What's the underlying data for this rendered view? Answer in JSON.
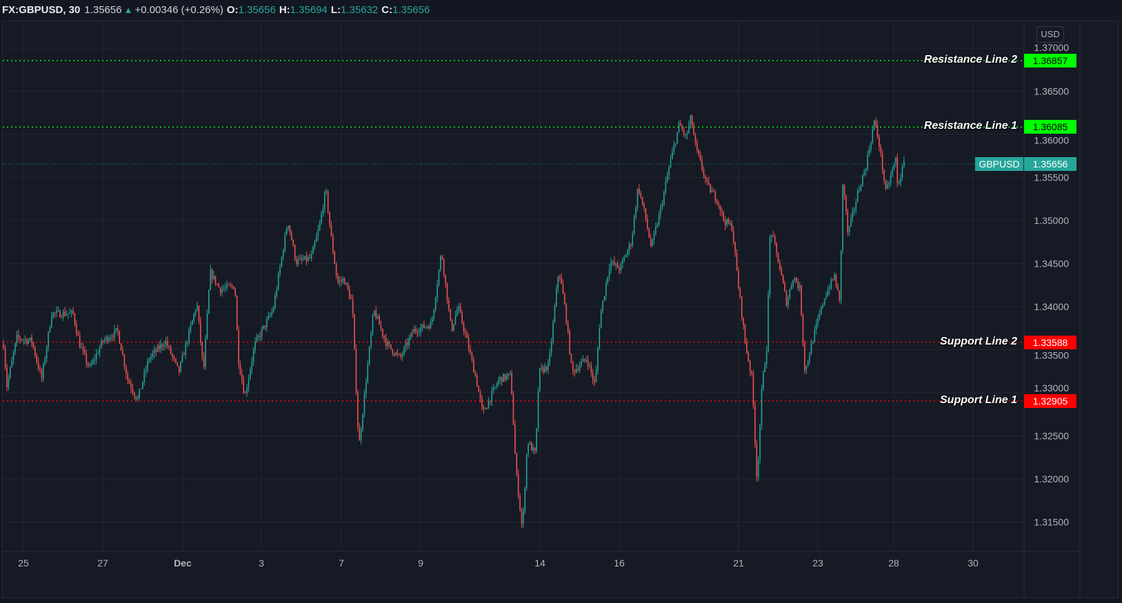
{
  "header": {
    "symbol": "FX:GBPUSD, 30",
    "last": "1.35656",
    "change": "+0.00346 (+0.26%)",
    "change_icon": "triangle-up-icon",
    "o_label": "O:",
    "o": "1.35656",
    "h_label": "H:",
    "h": "1.35694",
    "l_label": "L:",
    "l": "1.35632",
    "c_label": "C:",
    "c": "1.35656"
  },
  "currency": "USD",
  "colors": {
    "up": "#26a69a",
    "down": "#ef5350",
    "resistance": "#00ff00",
    "support": "#ff0000",
    "background": "#161a25"
  },
  "chart_data": {
    "type": "candlestick",
    "title": "FX:GBPUSD, 30",
    "ylim": [
      1.311,
      1.3725
    ],
    "yticks": [
      "1.31500",
      "1.32000",
      "1.32500",
      "1.33000",
      "1.33500",
      "1.34000",
      "1.34500",
      "1.35000",
      "1.35500",
      "1.36000",
      "1.36500",
      "1.37000"
    ],
    "xticks": [
      "25",
      "27",
      "Dec",
      "3",
      "7",
      "9",
      "14",
      "16",
      "21",
      "23",
      "28",
      "30"
    ],
    "grid": true,
    "price_path": [
      [
        "Nov 24 12:00",
        1.3356
      ],
      [
        "Nov 24 14:00",
        1.3308
      ],
      [
        "Nov 24 20:00",
        1.3364
      ],
      [
        "Nov 25 05:00",
        1.336
      ],
      [
        "Nov 25 11:00",
        1.3316
      ],
      [
        "Nov 25 17:00",
        1.3392
      ],
      [
        "Nov 26 06:00",
        1.3392
      ],
      [
        "Nov 26 10:00",
        1.3356
      ],
      [
        "Nov 26 16:00",
        1.3328
      ],
      [
        "Nov 27 00:00",
        1.336
      ],
      [
        "Nov 27 09:00",
        1.3372
      ],
      [
        "Nov 27 15:00",
        1.3316
      ],
      [
        "Nov 27 21:00",
        1.3292
      ],
      [
        "Nov 30 04:00",
        1.334
      ],
      [
        "Nov 30 14:00",
        1.336
      ],
      [
        "Nov 30 22:00",
        1.3324
      ],
      [
        "Dec 1 09:00",
        1.3404
      ],
      [
        "Dec 1 13:00",
        1.3324
      ],
      [
        "Dec 1 17:00",
        1.344
      ],
      [
        "Dec 1 23:00",
        1.342
      ],
      [
        "Dec 2 08:00",
        1.3424
      ],
      [
        "Dec 2 10:00",
        1.334
      ],
      [
        "Dec 2 14:00",
        1.3296
      ],
      [
        "Dec 2 20:00",
        1.3356
      ],
      [
        "Dec 3 07:00",
        1.3396
      ],
      [
        "Dec 3 16:00",
        1.35
      ],
      [
        "Dec 3 21:00",
        1.3452
      ],
      [
        "Dec 4 06:00",
        1.3456
      ],
      [
        "Dec 4 11:00",
        1.3492
      ],
      [
        "Dec 4 15:00",
        1.3536
      ],
      [
        "Dec 4 18:00",
        1.3484
      ],
      [
        "Dec 4 22:00",
        1.3428
      ],
      [
        "Dec 7 02:00",
        1.3432
      ],
      [
        "Dec 7 07:00",
        1.3404
      ],
      [
        "Dec 7 11:00",
        1.3236
      ],
      [
        "Dec 7 15:00",
        1.3308
      ],
      [
        "Dec 7 20:00",
        1.3396
      ],
      [
        "Dec 8 04:00",
        1.3356
      ],
      [
        "Dec 8 12:00",
        1.334
      ],
      [
        "Dec 8 20:00",
        1.3372
      ],
      [
        "Dec 9 07:00",
        1.338
      ],
      [
        "Dec 9 13:00",
        1.3464
      ],
      [
        "Dec 9 19:00",
        1.3372
      ],
      [
        "Dec 9 23:00",
        1.34
      ],
      [
        "Dec 10 04:00",
        1.3364
      ],
      [
        "Dec 10 10:00",
        1.3316
      ],
      [
        "Dec 10 14:00",
        1.3276
      ],
      [
        "Dec 11 00:00",
        1.3316
      ],
      [
        "Dec 11 07:00",
        1.332
      ],
      [
        "Dec 11 10:00",
        1.3212
      ],
      [
        "Dec 11 14:00",
        1.314
      ],
      [
        "Dec 11 17:00",
        1.3244
      ],
      [
        "Dec 11 22:00",
        1.3228
      ],
      [
        "Dec 14 00:00",
        1.3324
      ],
      [
        "Dec 14 06:00",
        1.3332
      ],
      [
        "Dec 14 12:00",
        1.3444
      ],
      [
        "Dec 14 16:00",
        1.3396
      ],
      [
        "Dec 14 20:00",
        1.3324
      ],
      [
        "Dec 15 05:00",
        1.334
      ],
      [
        "Dec 15 10:00",
        1.3308
      ],
      [
        "Dec 15 13:00",
        1.3388
      ],
      [
        "Dec 15 19:00",
        1.3452
      ],
      [
        "Dec 16 01:00",
        1.3444
      ],
      [
        "Dec 16 08:00",
        1.3476
      ],
      [
        "Dec 16 12:00",
        1.354
      ],
      [
        "Dec 16 16:00",
        1.3508
      ],
      [
        "Dec 16 20:00",
        1.3468
      ],
      [
        "Dec 17 02:00",
        1.3516
      ],
      [
        "Dec 17 07:00",
        1.3564
      ],
      [
        "Dec 17 13:00",
        1.3612
      ],
      [
        "Dec 17 17:00",
        1.3596
      ],
      [
        "Dec 17 20:00",
        1.362
      ],
      [
        "Dec 17 23:00",
        1.3584
      ],
      [
        "Dec 18 06:00",
        1.354
      ],
      [
        "Dec 18 12:00",
        1.3524
      ],
      [
        "Dec 18 16:00",
        1.35
      ],
      [
        "Dec 18 21:00",
        1.3492
      ],
      [
        "Dec 21 00:00",
        1.3436
      ],
      [
        "Dec 21 05:00",
        1.3356
      ],
      [
        "Dec 21 09:00",
        1.3316
      ],
      [
        "Dec 21 12:00",
        1.3196
      ],
      [
        "Dec 21 15:00",
        1.3308
      ],
      [
        "Dec 21 18:00",
        1.3356
      ],
      [
        "Dec 21 20:00",
        1.3492
      ],
      [
        "Dec 22 01:00",
        1.3452
      ],
      [
        "Dec 22 06:00",
        1.3404
      ],
      [
        "Dec 22 10:00",
        1.3436
      ],
      [
        "Dec 22 14:00",
        1.342
      ],
      [
        "Dec 22 17:00",
        1.3324
      ],
      [
        "Dec 22 22:00",
        1.3364
      ],
      [
        "Dec 23 05:00",
        1.3412
      ],
      [
        "Dec 23 11:00",
        1.3436
      ],
      [
        "Dec 23 14:00",
        1.3404
      ],
      [
        "Dec 23 16:00",
        1.3548
      ],
      [
        "Dec 23 19:00",
        1.3484
      ],
      [
        "Dec 24 01:00",
        1.3532
      ],
      [
        "Dec 24 06:00",
        1.3564
      ],
      [
        "Dec 24 11:00",
        1.3616
      ],
      [
        "Dec 24 14:00",
        1.3588
      ],
      [
        "Dec 24 18:00",
        1.3532
      ],
      [
        "Dec 28 00:00",
        1.3572
      ],
      [
        "Dec 28 01:00",
        1.354
      ],
      [
        "Dec 28 05:00",
        1.3566
      ]
    ],
    "horizontal_lines": [
      {
        "label": "Resistance Line 2",
        "price": 1.36857,
        "price_text": "1.36857",
        "kind": "resistance"
      },
      {
        "label": "Resistance Line 1",
        "price": 1.36085,
        "price_text": "1.36085",
        "kind": "resistance"
      },
      {
        "label": "Support Line 2",
        "price": 1.33588,
        "price_text": "1.33588",
        "kind": "support"
      },
      {
        "label": "Support Line 1",
        "price": 1.32905,
        "price_text": "1.32905",
        "kind": "support"
      }
    ],
    "current_price": {
      "label": "GBPUSD",
      "price": 1.35656,
      "price_text": "1.35656"
    }
  }
}
